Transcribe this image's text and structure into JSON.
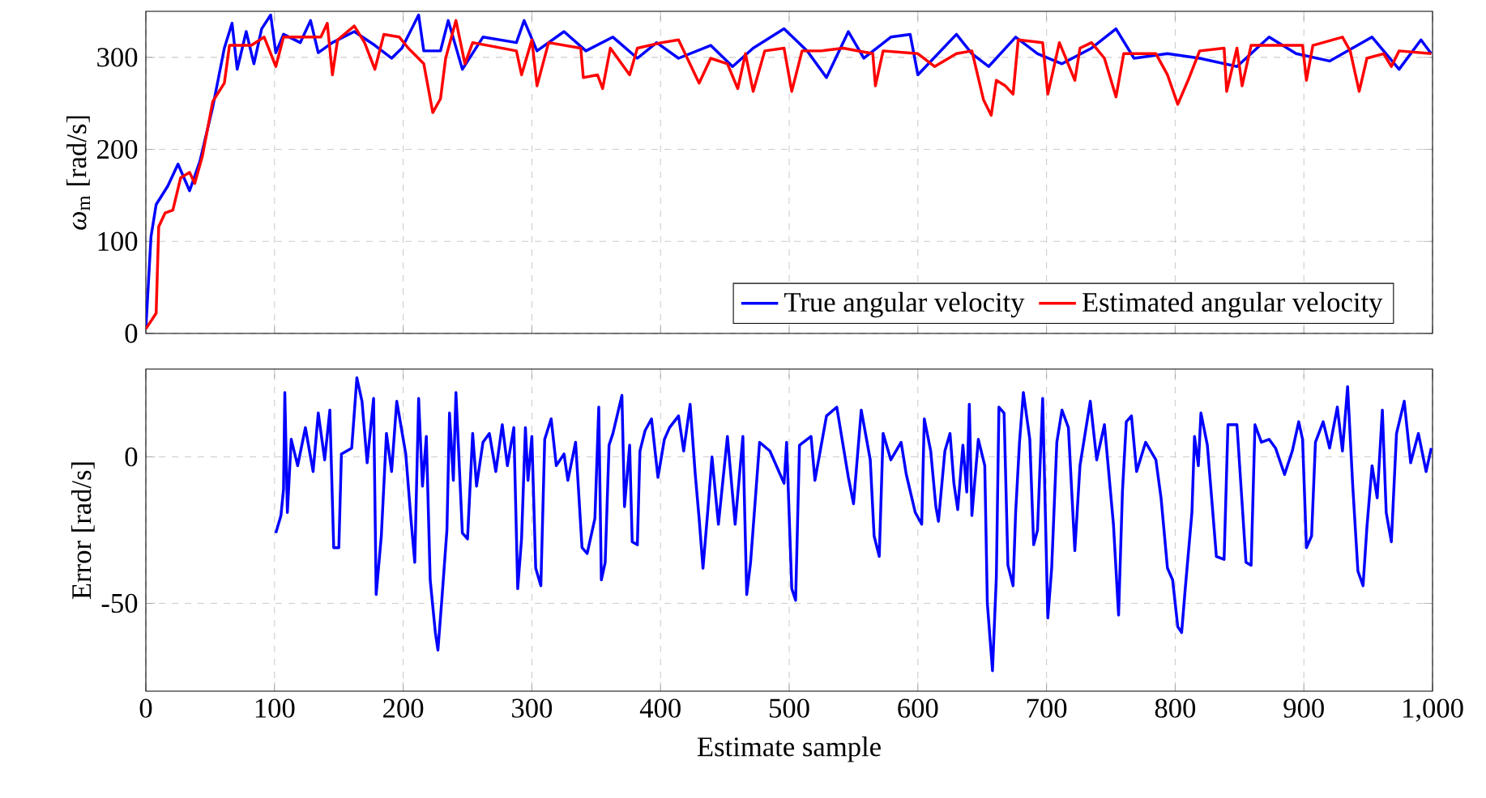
{
  "chart_data": [
    {
      "type": "line",
      "ylabel": "*ω*$_{m}$ [rad/s]",
      "xlim": [
        0,
        1000
      ],
      "ylim": [
        0,
        350
      ],
      "xticks": [
        0,
        100,
        200,
        300,
        400,
        500,
        600,
        700,
        800,
        900,
        1000
      ],
      "yticks": [
        0,
        100,
        200,
        300
      ],
      "tick_labels": "y",
      "grid": true,
      "legend": "bottom right",
      "series": [
        {
          "name": "True angular velocity",
          "color": "#0000ff",
          "x": [
            0,
            4,
            8,
            17,
            25,
            34,
            42,
            52,
            61,
            67,
            71,
            78,
            84,
            90,
            97,
            101,
            107,
            120,
            128,
            134,
            145,
            162,
            178,
            191,
            199,
            212,
            216,
            229,
            235,
            246,
            262,
            288,
            294,
            304,
            325,
            342,
            363,
            382,
            397,
            414,
            439,
            456,
            472,
            496,
            514,
            529,
            546,
            558,
            579,
            594,
            600,
            630,
            642,
            655,
            676,
            693,
            712,
            735,
            754,
            768,
            794,
            819,
            848,
            873,
            894,
            920,
            953,
            974,
            991,
            999
          ],
          "values": [
            5,
            105,
            140,
            160,
            184,
            155,
            187,
            246,
            310,
            337,
            287,
            328,
            293,
            331,
            346,
            305,
            325,
            316,
            340,
            305,
            316,
            328,
            313,
            299,
            310,
            346,
            307,
            307,
            340,
            287,
            322,
            316,
            340,
            307,
            328,
            307,
            322,
            299,
            316,
            299,
            313,
            290,
            310,
            331,
            307,
            278,
            328,
            299,
            322,
            325,
            281,
            325,
            304,
            290,
            322,
            304,
            293,
            310,
            331,
            299,
            304,
            299,
            290,
            322,
            304,
            296,
            322,
            287,
            319,
            304
          ]
        },
        {
          "name": "Estimated angular velocity",
          "color": "#ff0000",
          "x": [
            0,
            8,
            10,
            15,
            21,
            27,
            34,
            38,
            44,
            52,
            61,
            65,
            82,
            92,
            101,
            107,
            136,
            141,
            145,
            149,
            162,
            170,
            178,
            185,
            197,
            204,
            216,
            223,
            229,
            233,
            241,
            248,
            254,
            288,
            292,
            300,
            304,
            313,
            338,
            340,
            351,
            355,
            361,
            376,
            382,
            401,
            414,
            430,
            439,
            452,
            460,
            466,
            472,
            481,
            496,
            502,
            510,
            525,
            542,
            565,
            567,
            573,
            600,
            613,
            630,
            642,
            651,
            657,
            661,
            668,
            674,
            678,
            697,
            701,
            710,
            722,
            726,
            735,
            745,
            754,
            760,
            785,
            794,
            802,
            810,
            819,
            838,
            840,
            848,
            852,
            859,
            899,
            902,
            907,
            930,
            936,
            943,
            949,
            962,
            968,
            974,
            999
          ],
          "values": [
            5,
            22,
            116,
            131,
            134,
            169,
            175,
            163,
            193,
            252,
            272,
            313,
            313,
            322,
            290,
            322,
            322,
            337,
            281,
            319,
            334,
            316,
            287,
            325,
            322,
            310,
            293,
            240,
            255,
            299,
            340,
            293,
            316,
            307,
            281,
            319,
            269,
            316,
            310,
            278,
            281,
            266,
            310,
            281,
            310,
            316,
            319,
            272,
            299,
            293,
            266,
            304,
            263,
            307,
            310,
            263,
            307,
            307,
            310,
            304,
            269,
            307,
            304,
            290,
            304,
            307,
            254,
            237,
            275,
            269,
            260,
            319,
            316,
            260,
            316,
            275,
            310,
            316,
            299,
            257,
            304,
            304,
            281,
            249,
            275,
            307,
            310,
            263,
            310,
            269,
            313,
            313,
            275,
            313,
            322,
            307,
            263,
            299,
            304,
            290,
            307,
            304
          ]
        }
      ]
    },
    {
      "type": "line",
      "xlabel": "Estimate sample",
      "ylabel": "Error [rad/s]",
      "xlim": [
        0,
        1000
      ],
      "ylim": [
        -80,
        30
      ],
      "xticks": [
        0,
        100,
        200,
        300,
        400,
        500,
        600,
        700,
        800,
        900,
        {
          "value": 1000,
          "label": "1,000"
        }
      ],
      "yticks": [
        -50,
        0
      ],
      "grid": true,
      "series": [
        {
          "color": "#0000ff",
          "x": [
            101,
            105,
            107,
            108,
            110,
            113,
            118,
            124,
            130,
            134,
            139,
            143,
            146,
            150,
            152,
            160,
            164,
            168,
            172,
            177,
            179,
            183,
            187,
            191,
            195,
            202,
            206,
            209,
            212,
            215,
            218,
            221,
            225,
            227,
            230,
            234,
            236,
            239,
            241,
            246,
            250,
            254,
            257,
            262,
            267,
            272,
            277,
            281,
            286,
            289,
            292,
            295,
            297,
            300,
            303,
            307,
            310,
            315,
            319,
            325,
            328,
            334,
            339,
            343,
            349,
            352,
            354,
            357,
            360,
            363,
            370,
            372,
            376,
            378,
            382,
            384,
            388,
            393,
            398,
            403,
            407,
            414,
            418,
            423,
            427,
            430,
            433,
            437,
            440,
            445,
            452,
            458,
            464,
            467,
            470,
            477,
            485,
            496,
            498,
            502,
            505,
            508,
            517,
            520,
            529,
            537,
            546,
            550,
            556,
            563,
            566,
            570,
            573,
            579,
            587,
            591,
            598,
            603,
            605,
            610,
            614,
            616,
            621,
            625,
            628,
            631,
            635,
            638,
            640,
            642,
            647,
            652,
            654,
            658,
            661,
            663,
            667,
            670,
            674,
            676,
            679,
            682,
            687,
            690,
            693,
            697,
            701,
            704,
            708,
            712,
            717,
            722,
            726,
            734,
            739,
            745,
            752,
            756,
            759,
            762,
            766,
            770,
            777,
            785,
            789,
            794,
            798,
            802,
            805,
            808,
            813,
            815,
            818,
            820,
            825,
            832,
            838,
            841,
            848,
            855,
            859,
            862,
            867,
            873,
            878,
            885,
            891,
            896,
            899,
            902,
            906,
            909,
            915,
            920,
            926,
            930,
            934,
            938,
            942,
            946,
            949,
            953,
            957,
            961,
            964,
            968,
            972,
            978,
            983,
            989,
            995,
            999
          ],
          "values": [
            -26,
            -20,
            -11,
            22,
            -19,
            6,
            -3,
            10,
            -5,
            15,
            -1,
            16,
            -31,
            -31,
            1,
            3,
            27,
            19,
            -2,
            20,
            -47,
            -27,
            8,
            -5,
            19,
            1,
            -21,
            -36,
            20,
            -10,
            7,
            -42,
            -60,
            -66,
            -49,
            -25,
            15,
            -8,
            22,
            -26,
            -28,
            8,
            -10,
            5,
            8,
            -5,
            11,
            -3,
            10,
            -45,
            -28,
            10,
            -8,
            7,
            -38,
            -44,
            6,
            13,
            -3,
            1,
            -8,
            5,
            -31,
            -33,
            -21,
            17,
            -42,
            -36,
            4,
            8,
            21,
            -17,
            4,
            -29,
            -30,
            2,
            9,
            13,
            -7,
            6,
            10,
            14,
            2,
            18,
            -6,
            -21,
            -38,
            -17,
            0,
            -23,
            7,
            -23,
            7,
            -47,
            -36,
            5,
            2,
            -9,
            5,
            -45,
            -49,
            4,
            7,
            -8,
            14,
            17,
            -7,
            -16,
            16,
            -1,
            -27,
            -34,
            8,
            -1,
            5,
            -6,
            -19,
            -23,
            13,
            2,
            -17,
            -22,
            2,
            8,
            -9,
            -18,
            4,
            -12,
            18,
            -20,
            6,
            -3,
            -50,
            -73,
            -41,
            17,
            15,
            -37,
            -44,
            -19,
            5,
            22,
            6,
            -30,
            -25,
            20,
            -55,
            -38,
            5,
            16,
            10,
            -32,
            -3,
            19,
            -1,
            11,
            -23,
            -54,
            -12,
            12,
            14,
            -5,
            5,
            -1,
            -14,
            -38,
            -42,
            -58,
            -60,
            -44,
            -19,
            7,
            -3,
            15,
            4,
            -34,
            -35,
            11,
            11,
            -36,
            -37,
            11,
            5,
            6,
            3,
            -6,
            2,
            12,
            6,
            -31,
            -27,
            5,
            12,
            3,
            17,
            2,
            24,
            -10,
            -39,
            -44,
            -24,
            -3,
            -14,
            16,
            -19,
            -29,
            8,
            19,
            -2,
            8,
            -5,
            3
          ]
        }
      ]
    }
  ]
}
